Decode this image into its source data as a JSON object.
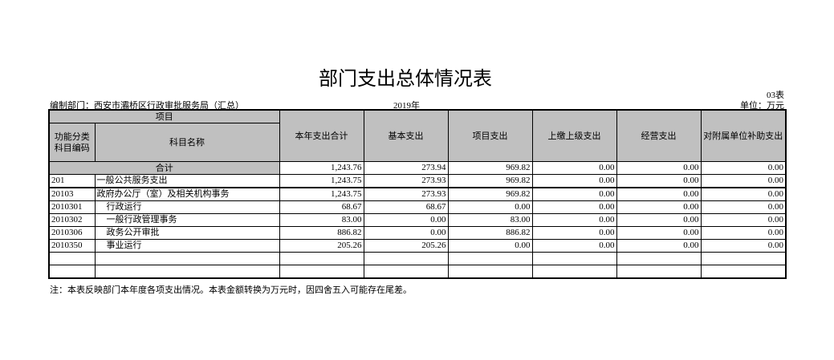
{
  "title": "部门支出总体情况表",
  "table_no": "03表",
  "dept": "编制部门：西安市灞桥区行政审批服务局（汇总）",
  "year": "2019年",
  "unit": "单位：万元",
  "headers": {
    "item": "项目",
    "code": "功能分类科目编码",
    "name": "科目名称",
    "cols": [
      "本年支出合计",
      "基本支出",
      "项目支出",
      "上缴上级支出",
      "经营支出",
      "对附属单位补助支出"
    ]
  },
  "total": {
    "label": "合计",
    "values": [
      "1,243.76",
      "273.94",
      "969.82",
      "0.00",
      "0.00",
      "0.00"
    ]
  },
  "rows": [
    {
      "code": "201",
      "name": "一般公共服务支出",
      "values": [
        "1,243.75",
        "273.93",
        "969.82",
        "0.00",
        "0.00",
        "0.00"
      ]
    },
    {
      "code": "20103",
      "name": "政府办公厅（室）及相关机构事务",
      "values": [
        "1,243.75",
        "273.93",
        "969.82",
        "0.00",
        "0.00",
        "0.00"
      ]
    },
    {
      "code": "2010301",
      "name": "行政运行",
      "values": [
        "68.67",
        "68.67",
        "0.00",
        "0.00",
        "0.00",
        "0.00"
      ]
    },
    {
      "code": "2010302",
      "name": "一般行政管理事务",
      "values": [
        "83.00",
        "0.00",
        "83.00",
        "0.00",
        "0.00",
        "0.00"
      ]
    },
    {
      "code": "2010306",
      "name": "政务公开审批",
      "values": [
        "886.82",
        "0.00",
        "886.82",
        "0.00",
        "0.00",
        "0.00"
      ]
    },
    {
      "code": "2010350",
      "name": "事业运行",
      "values": [
        "205.26",
        "205.26",
        "0.00",
        "0.00",
        "0.00",
        "0.00"
      ]
    }
  ],
  "note": "注：本表反映部门本年度各项支出情况。本表金额转换为万元时，因四舍五入可能存在尾差。"
}
